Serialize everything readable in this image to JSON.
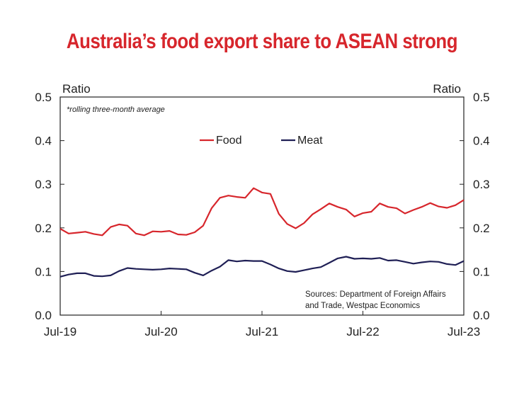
{
  "chart_data": {
    "type": "line",
    "title": "Australia’s food export share to ASEAN strong",
    "title_color": "#d7262c",
    "y_unit_left": "Ratio",
    "y_unit_right": "Ratio",
    "note": "*rolling three-month average",
    "source_lines": [
      "Sources: Department of Foreign Affairs",
      "and Trade, Westpac Economics"
    ],
    "ylim": [
      0,
      0.5
    ],
    "y_ticks": [
      "0.0",
      "0.1",
      "0.2",
      "0.3",
      "0.4",
      "0.5"
    ],
    "x_ticks": [
      "Jul-19",
      "Jul-20",
      "Jul-21",
      "Jul-22",
      "Jul-23"
    ],
    "x_start": "Jul-19",
    "legend_position": "top-center",
    "grid": false,
    "series": [
      {
        "name": "Food",
        "color": "#d7262c",
        "values": [
          0.198,
          0.187,
          0.189,
          0.191,
          0.186,
          0.183,
          0.202,
          0.208,
          0.205,
          0.187,
          0.183,
          0.192,
          0.191,
          0.193,
          0.185,
          0.184,
          0.19,
          0.205,
          0.245,
          0.269,
          0.274,
          0.271,
          0.269,
          0.291,
          0.281,
          0.278,
          0.232,
          0.209,
          0.199,
          0.211,
          0.231,
          0.243,
          0.256,
          0.248,
          0.242,
          0.226,
          0.234,
          0.237,
          0.256,
          0.248,
          0.245,
          0.233,
          0.241,
          0.248,
          0.257,
          0.249,
          0.246,
          0.252,
          0.264
        ]
      },
      {
        "name": "Meat",
        "color": "#1f1f55",
        "values": [
          0.088,
          0.093,
          0.096,
          0.096,
          0.09,
          0.089,
          0.091,
          0.101,
          0.108,
          0.106,
          0.105,
          0.104,
          0.105,
          0.107,
          0.106,
          0.105,
          0.097,
          0.091,
          0.102,
          0.111,
          0.126,
          0.123,
          0.125,
          0.124,
          0.124,
          0.116,
          0.107,
          0.101,
          0.099,
          0.103,
          0.107,
          0.11,
          0.12,
          0.13,
          0.134,
          0.129,
          0.13,
          0.129,
          0.131,
          0.125,
          0.126,
          0.122,
          0.118,
          0.121,
          0.123,
          0.122,
          0.117,
          0.115,
          0.124
        ]
      }
    ]
  }
}
